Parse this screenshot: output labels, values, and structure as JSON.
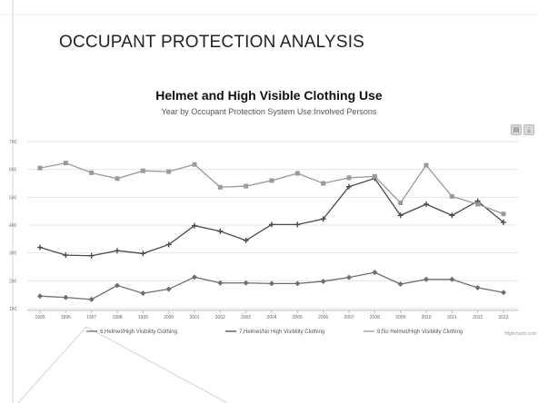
{
  "slide": {
    "title": "OCCUPANT PROTECTION ANALYSIS"
  },
  "chart_data": {
    "type": "line",
    "title": "Helmet and High Visible Clothing Use",
    "subtitle": "Year by Occupant Protection System Use:Involved Persons",
    "xlabel": "",
    "ylabel": "",
    "categories": [
      "1995",
      "1996",
      "1997",
      "1998",
      "1999",
      "2000",
      "2001",
      "2002",
      "2003",
      "2004",
      "2005",
      "2006",
      "2007",
      "2008",
      "2009",
      "2010",
      "2011",
      "2012",
      "2013"
    ],
    "ylim": [
      100,
      700
    ],
    "yticks": [
      100,
      200,
      300,
      400,
      500,
      600,
      700
    ],
    "grid": true,
    "legend_position": "bottom",
    "series": [
      {
        "name": "6,Helmet/High Visibility Clothing",
        "marker": "diamond",
        "color": "#6e6e6e",
        "values": [
          145,
          140,
          133,
          183,
          155,
          170,
          213,
          192,
          192,
          190,
          190,
          198,
          212,
          230,
          188,
          205,
          205,
          175,
          158
        ]
      },
      {
        "name": "7,Helmet/No High Visibility Clothing",
        "marker": "cross",
        "color": "#4a4a4a",
        "values": [
          320,
          292,
          290,
          308,
          298,
          330,
          398,
          378,
          345,
          402,
          402,
          422,
          538,
          568,
          435,
          475,
          435,
          486,
          410
        ]
      },
      {
        "name": "8,No Helmet/High Visibility Clothing",
        "marker": "square",
        "color": "#9a9a9a",
        "values": [
          605,
          623,
          588,
          567,
          595,
          592,
          618,
          536,
          540,
          560,
          586,
          550,
          570,
          575,
          480,
          615,
          503,
          475,
          440
        ]
      }
    ],
    "credits": "Highcharts.com"
  },
  "export": {
    "print_icon": "printer-icon",
    "download_icon": "download-icon"
  }
}
